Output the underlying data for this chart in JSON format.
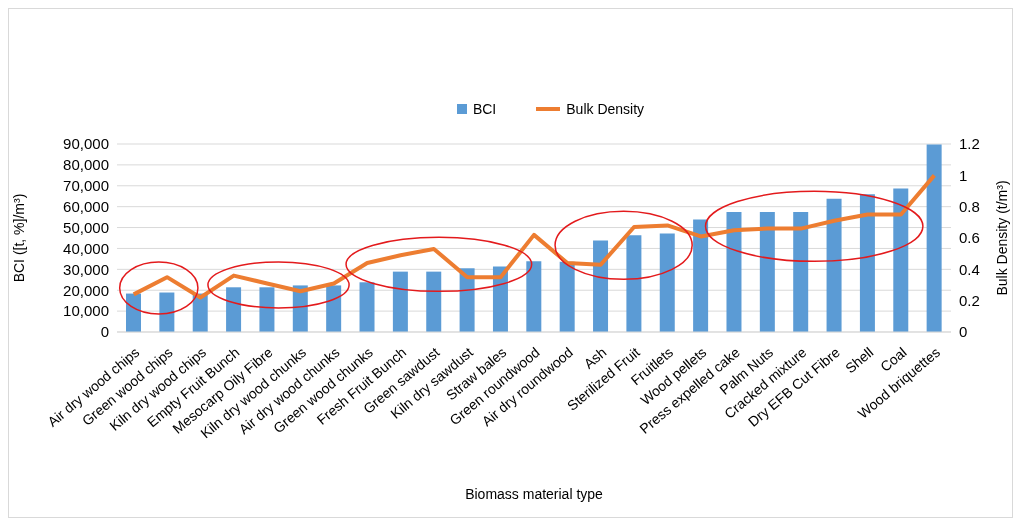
{
  "chart_data": {
    "type": "bar",
    "xlabel": "Biomass material type",
    "ylabel": "BCI ([t, %]/m³)",
    "y2label": "Bulk Density (t/m³)",
    "categories": [
      "Air dry wood chips",
      "Green wood chips",
      "Kiln dry wood chips",
      "Empty Fruit Bunch",
      "Mesocarp Oily Fibre",
      "Kiln dry wood chunks",
      "Air dry wood chunks",
      "Green wood chunks",
      "Fresh Fruit Bunch",
      "Green sawdust",
      "Kiln dry sawdust",
      "Straw bales",
      "Green roundwood",
      "Air dry roundwood",
      "Ash",
      "Sterilized Fruit",
      "Fruitlets",
      "Wood pellets",
      "Press expelled cake",
      "Palm Nuts",
      "Cracked mixture",
      "Dry EFB Cut Fibre",
      "Shell",
      "Coal",
      "Wood briquettes"
    ],
    "series": [
      {
        "name": "BCI",
        "color": "#5b9bd5",
        "values": [
          18400,
          18900,
          18400,
          21400,
          21400,
          22300,
          22300,
          23800,
          28900,
          28900,
          30500,
          31400,
          33900,
          33600,
          43800,
          46300,
          47200,
          53800,
          57400,
          57400,
          57400,
          63800,
          65900,
          68700,
          89800
        ]
      },
      {
        "name": "Bulk Density",
        "type": "line",
        "axis": "y2",
        "color": "#ed7d31",
        "values": [
          0.24,
          0.35,
          0.22,
          0.36,
          0.31,
          0.26,
          0.31,
          0.44,
          0.49,
          0.53,
          0.35,
          0.35,
          0.62,
          0.44,
          0.43,
          0.67,
          0.68,
          0.61,
          0.65,
          0.66,
          0.66,
          0.71,
          0.75,
          0.75,
          1.0
        ]
      }
    ],
    "ylim": [
      0,
      90000
    ],
    "yticks": [
      0,
      {
        "value": 10000,
        "label": "10,000"
      },
      {
        "value": 20000,
        "label": "20,000"
      },
      {
        "value": 30000,
        "label": "30,000"
      },
      {
        "value": 40000,
        "label": "40,000"
      },
      {
        "value": 50000,
        "label": "50,000"
      },
      {
        "value": 60000,
        "label": "60,000"
      },
      {
        "value": 70000,
        "label": "70,000"
      },
      {
        "value": 80000,
        "label": "80,000"
      },
      {
        "value": 90000,
        "label": "90,000"
      }
    ],
    "y2lim": [
      0,
      1.2
    ],
    "y2ticks": [
      0,
      0.2,
      0.4,
      0.6,
      0.8,
      1,
      1.2
    ],
    "grid": "y",
    "legend": "top",
    "marker": "none",
    "line_style": "solid"
  }
}
